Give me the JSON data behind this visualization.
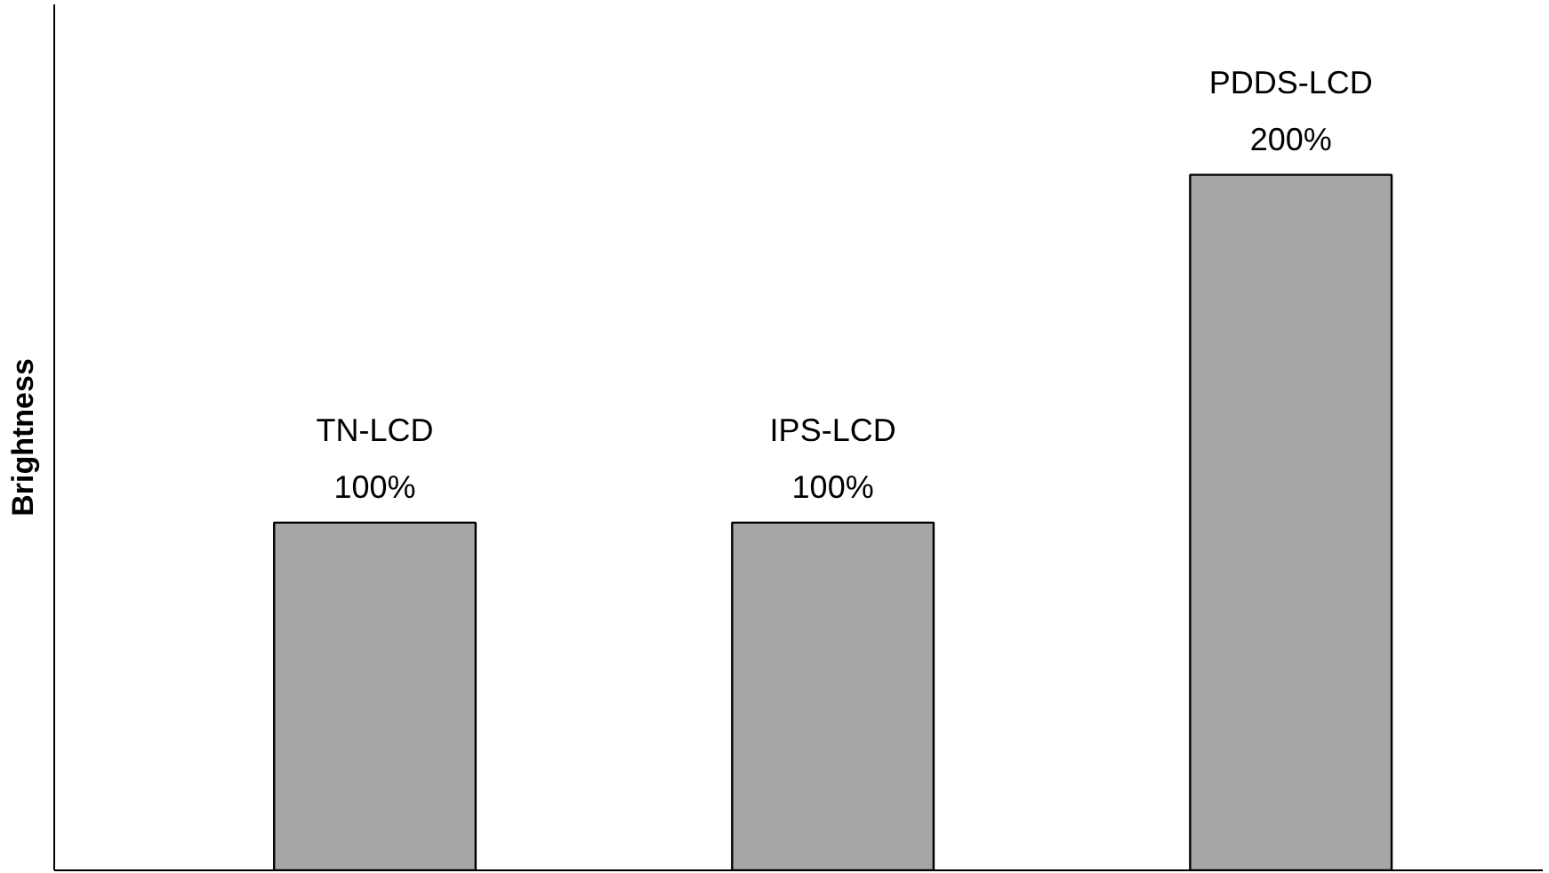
{
  "chart_data": {
    "type": "bar",
    "ylabel": "Brightness",
    "categories": [
      "TN-LCD",
      "IPS-LCD",
      "PDDS-LCD"
    ],
    "values": [
      100,
      100,
      200
    ],
    "value_labels": [
      "100%",
      "100%",
      "200%"
    ],
    "color": "#a6a6a6",
    "ylim": [
      0,
      249
    ]
  }
}
